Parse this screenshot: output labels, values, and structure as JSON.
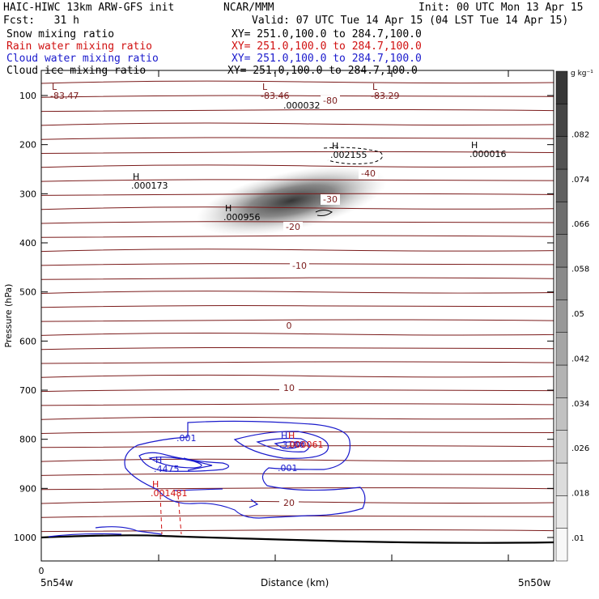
{
  "header": {
    "model": "HAIC-HIWC 13km ARW-GFS init",
    "org": "NCAR/MMM",
    "init": "Init: 00 UTC Mon 13 Apr 15",
    "fcst": "Fcst:   31 h",
    "valid": "Valid: 07 UTC Tue 14 Apr 15 (04 LST Tue 14 Apr 15)"
  },
  "fields": [
    {
      "name": "Snow mixing ratio",
      "xy": "XY= 251.0,100.0 to 284.7,100.0",
      "color": "#000000"
    },
    {
      "name": "Rain water mixing ratio",
      "xy": "XY= 251.0,100.0 to 284.7,100.0",
      "color": "#d01010"
    },
    {
      "name": "Cloud water mixing ratio",
      "xy": "XY= 251.0,100.0 to 284.7,100.0",
      "color": "#1a1acc"
    },
    {
      "name": "Cloud ice mixing ratio",
      "xy": "XY= 251.0,100.0 to 284.7,100.0",
      "color": "#000000"
    }
  ],
  "colors": {
    "temperature": "#7a1a1a",
    "rain": "#d01010",
    "cloud_water": "#1a1acc",
    "ground": "#000000"
  },
  "chart_data": {
    "type": "contour",
    "xlabel": "Distance (km)",
    "ylabel": "Pressure (hPa)",
    "x_ticks": [
      "0"
    ],
    "x_endpoints": [
      "5n54w",
      "5n50w"
    ],
    "y_ticks": [
      100,
      200,
      300,
      400,
      500,
      600,
      700,
      800,
      900,
      1000
    ],
    "ylim": [
      1050,
      50
    ],
    "colorbar_unit": "g kg⁻¹",
    "colorbar_levels": [
      ".01",
      ".018",
      ".026",
      ".034",
      ".042",
      ".05",
      ".058",
      ".066",
      ".074",
      ".082"
    ],
    "temperature_labels": [
      "-80",
      "-40",
      "-30",
      "-20",
      "-10",
      "0",
      "10",
      "20"
    ],
    "extrema": [
      {
        "type": "L",
        "value": "-83.47",
        "color": "#7a1a1a"
      },
      {
        "type": "L",
        "value": "-83.46",
        "color": "#7a1a1a"
      },
      {
        "type": "L",
        "value": "-83.29",
        "color": "#7a1a1a"
      },
      {
        "type": "",
        "value": ".000032",
        "color": "#000000"
      },
      {
        "type": "H",
        "value": ".002155",
        "color": "#000000"
      },
      {
        "type": "H",
        "value": ".000016",
        "color": "#000000"
      },
      {
        "type": "H",
        "value": ".000173",
        "color": "#000000"
      },
      {
        "type": "H",
        "value": ".000956",
        "color": "#000000"
      },
      {
        "type": "H",
        "value": ".3160",
        "color": "#1a1acc"
      },
      {
        "type": "H",
        "value": ".000061",
        "color": "#d01010"
      },
      {
        "type": "H",
        "value": ".4475",
        "color": "#1a1acc"
      },
      {
        "type": "H",
        "value": ".001481",
        "color": "#d01010"
      }
    ],
    "cloud_water_labels": [
      ".001",
      ".001"
    ]
  }
}
